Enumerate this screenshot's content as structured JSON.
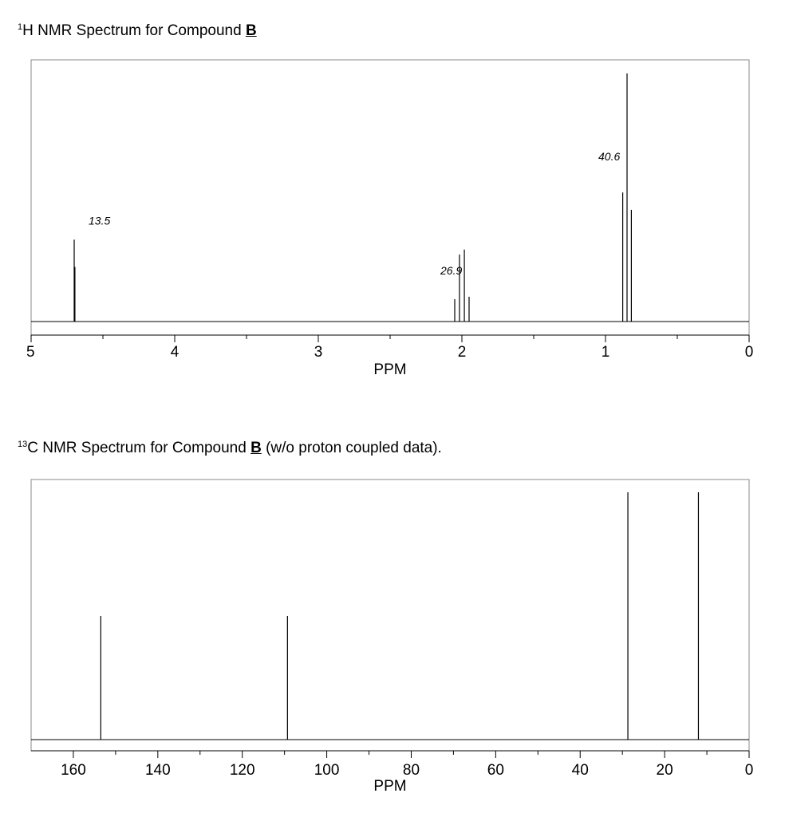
{
  "headings": {
    "h_nmr": {
      "sup": "1",
      "prefix": "H NMR Spectrum for Compound ",
      "compound": "B",
      "suffix": ""
    },
    "c_nmr": {
      "sup": "13",
      "prefix": "C NMR Spectrum for Compound ",
      "compound": "B",
      "suffix": " (w/o proton coupled data)."
    }
  },
  "chart_data": [
    {
      "type": "line",
      "id": "h-nmr",
      "xlabel": "PPM",
      "xlim": [
        5,
        0
      ],
      "ticks": [
        5,
        4,
        3,
        2,
        1,
        0
      ],
      "minor_ticks": [
        4.5,
        3.5,
        2.5,
        1.5,
        0.5
      ],
      "peaks": [
        {
          "ppm": 4.7,
          "height": 0.33
        },
        {
          "ppm": 4.695,
          "height": 0.22
        },
        {
          "ppm": 2.05,
          "height": 0.09
        },
        {
          "ppm": 2.017,
          "height": 0.27
        },
        {
          "ppm": 1.983,
          "height": 0.29
        },
        {
          "ppm": 1.95,
          "height": 0.1
        },
        {
          "ppm": 0.88,
          "height": 0.52
        },
        {
          "ppm": 0.85,
          "height": 1.0
        },
        {
          "ppm": 0.82,
          "height": 0.45
        }
      ],
      "integrals": [
        {
          "ppm": 4.6,
          "height": 0.39,
          "text": "13.5"
        },
        {
          "ppm": 2.15,
          "height": 0.19,
          "text": "26.9"
        },
        {
          "ppm": 1.05,
          "height": 0.65,
          "text": "40.6"
        }
      ]
    },
    {
      "type": "line",
      "id": "c-nmr",
      "xlabel": "PPM",
      "xlim": [
        170,
        0
      ],
      "ticks": [
        160,
        140,
        120,
        100,
        80,
        60,
        40,
        20,
        0
      ],
      "minor_ticks": [
        150,
        130,
        110,
        90,
        70,
        50,
        30,
        10
      ],
      "peaks": [
        {
          "ppm": 153.5,
          "height": 0.5
        },
        {
          "ppm": 109.3,
          "height": 0.5
        },
        {
          "ppm": 28.7,
          "height": 1.0
        },
        {
          "ppm": 12.0,
          "height": 1.0
        }
      ]
    }
  ]
}
